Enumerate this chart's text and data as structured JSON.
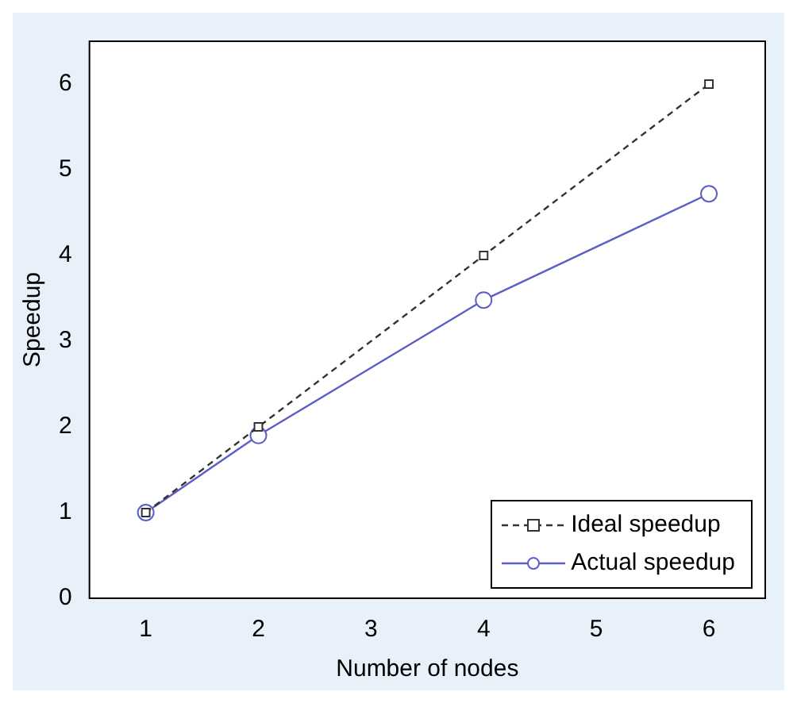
{
  "chart_data": {
    "type": "line",
    "xlabel": "Number of nodes",
    "ylabel": "Speedup",
    "x": [
      1,
      2,
      4,
      6
    ],
    "series": [
      {
        "name": "Ideal speedup",
        "color": "#333333",
        "values": [
          1,
          2,
          4,
          6
        ],
        "marker": "square",
        "line_style": "dashed"
      },
      {
        "name": "Actual speedup",
        "color": "#5b5fc7",
        "values": [
          1,
          1.9,
          3.48,
          4.72
        ],
        "marker": "circle",
        "line_style": "solid"
      }
    ],
    "xlim": [
      0.5,
      6.5
    ],
    "xticks": [
      1,
      2,
      3,
      4,
      5,
      6
    ],
    "ylim": [
      0,
      6.5
    ],
    "yticks": [
      0,
      1,
      2,
      3,
      4,
      5,
      6
    ],
    "grid": false,
    "legend": "bottom right"
  }
}
